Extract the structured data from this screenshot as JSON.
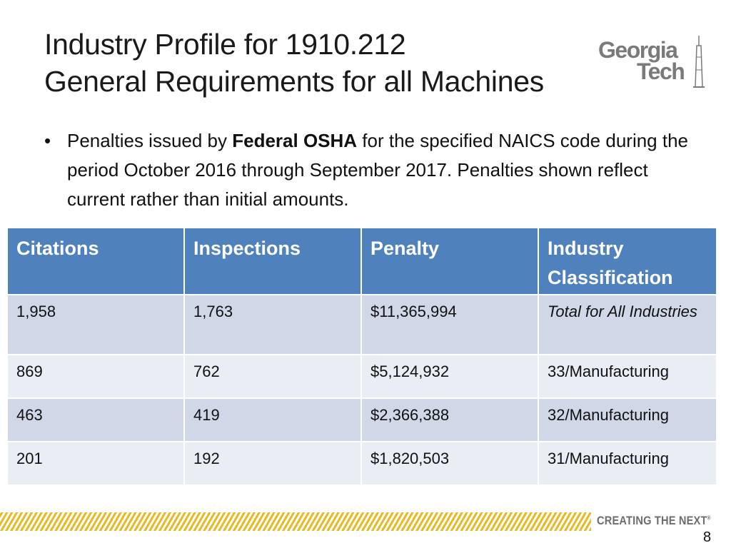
{
  "slide": {
    "title_line1": "Industry Profile for 1910.212",
    "title_line2": "General Requirements for all Machines",
    "logo": {
      "word1": "Georgia",
      "word2": "Tech",
      "color": "#7a7a7a"
    },
    "bullet": {
      "marker": "•",
      "text_before": "Penalties issued by ",
      "text_bold": "Federal OSHA",
      "text_after": " for the specified NAICS code during the period October 2016 through September 2017. Penalties shown reflect current rather than initial amounts."
    },
    "table": {
      "header_color": "#4f81bd",
      "row_colors": [
        "#d0d8e8",
        "#e9edf4"
      ],
      "headers": [
        "Citations",
        "Inspections",
        "Penalty",
        "Industry Classification"
      ],
      "rows": [
        [
          "1,958",
          "1,763",
          "$11,365,994",
          "Total for All Industries"
        ],
        [
          "869",
          "762",
          "$5,124,932",
          "33/Manufacturing"
        ],
        [
          "463",
          "419",
          "$2,366,388",
          "32/Manufacturing"
        ],
        [
          "201",
          "192",
          "$1,820,503",
          "31/Manufacturing"
        ]
      ]
    },
    "footer": {
      "tagline": "CREATING THE NEXT",
      "tagline_mark": "®",
      "stripe_color": "#e8b923",
      "page_number": "8"
    }
  }
}
